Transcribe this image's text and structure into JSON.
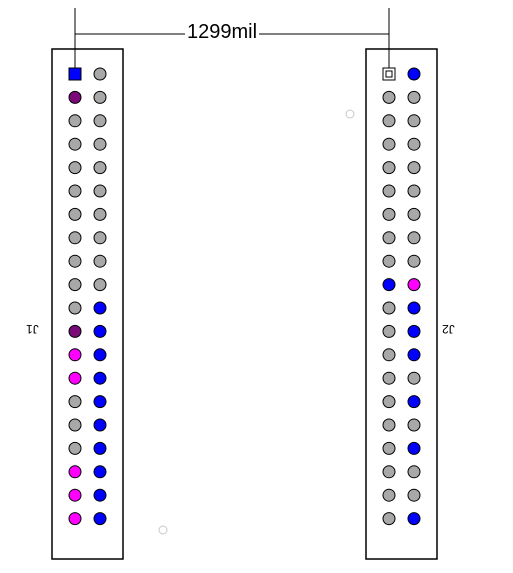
{
  "dimension": {
    "label": "1299mil"
  },
  "refs": {
    "left": "J1",
    "right": "J2"
  },
  "colors": {
    "gray": "#a8a8a8",
    "blue": "#0000ff",
    "purple": "#7a0a7a",
    "magenta": "#ff00ff",
    "outline": "#000000"
  },
  "connectors": [
    {
      "ref": "J1",
      "pin1": "square-blue",
      "col_a": [
        "blue",
        "purple",
        "gray",
        "gray",
        "gray",
        "gray",
        "gray",
        "gray",
        "gray",
        "gray",
        "gray",
        "purple",
        "magenta",
        "magenta",
        "gray",
        "gray",
        "gray",
        "magenta",
        "magenta",
        "magenta"
      ],
      "col_b": [
        "gray",
        "gray",
        "gray",
        "gray",
        "gray",
        "gray",
        "gray",
        "gray",
        "gray",
        "gray",
        "blue",
        "blue",
        "blue",
        "blue",
        "blue",
        "blue",
        "blue",
        "blue",
        "blue",
        "blue"
      ]
    },
    {
      "ref": "J2",
      "pin1": "square-outline",
      "col_a": [
        "gray",
        "gray",
        "gray",
        "gray",
        "gray",
        "gray",
        "gray",
        "gray",
        "gray",
        "blue",
        "gray",
        "gray",
        "gray",
        "gray",
        "gray",
        "gray",
        "gray",
        "gray",
        "gray",
        "gray"
      ],
      "col_b": [
        "blue",
        "gray",
        "gray",
        "gray",
        "gray",
        "gray",
        "gray",
        "gray",
        "gray",
        "magenta",
        "blue",
        "blue",
        "blue",
        "gray",
        "blue",
        "gray",
        "blue",
        "gray",
        "gray",
        "blue"
      ]
    }
  ]
}
